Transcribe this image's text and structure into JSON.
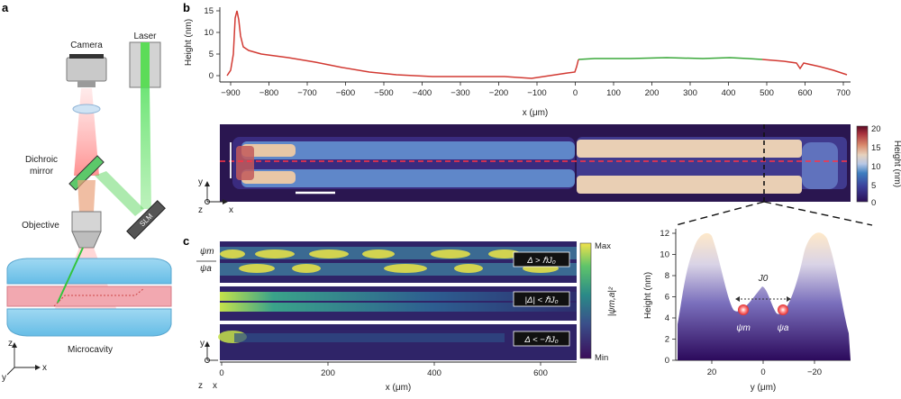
{
  "panel_a": {
    "letter": "a",
    "camera": "Camera",
    "laser": "Laser",
    "dichroic_line1": "Dichroic",
    "dichroic_line2": "mirror",
    "objective": "Objective",
    "slm": "SLM",
    "microcavity": "Microcavity",
    "axis_z": "z",
    "axis_x": "x",
    "axis_y": "y"
  },
  "panel_b": {
    "letter": "b",
    "profile_ylabel": "Height (nm)",
    "profile_xlabel": "x (μm)",
    "profile_xticks": [
      "−900",
      "−800",
      "−700",
      "−600",
      "−500",
      "−400",
      "−300",
      "−200",
      "−100",
      "0",
      "100",
      "200",
      "300",
      "400",
      "500",
      "600",
      "700"
    ],
    "profile_yticks": [
      "0",
      "5",
      "10",
      "15"
    ],
    "map_axis_y": "y",
    "map_axis_z": "z",
    "map_axis_x": "x",
    "colorbar_label": "Height (nm)",
    "colorbar_ticks": [
      "20",
      "15",
      "10",
      "5",
      "0"
    ]
  },
  "panel_c": {
    "letter": "c",
    "psi_m": "ψm",
    "psi_a": "ψa",
    "regime_1": "Δ > ℏJ₀",
    "regime_2": "|Δ| < ℏJ₀",
    "regime_3": "Δ < −ℏJ₀",
    "colorbar_label": "|ψm,a|²",
    "colorbar_max": "Max",
    "colorbar_min": "Min",
    "xlabel": "x (μm)",
    "xticks": [
      "0",
      "200",
      "400",
      "600"
    ],
    "axis_y": "y",
    "axis_z": "z",
    "axis_x": "x"
  },
  "cross_section": {
    "ylabel": "Height (nm)",
    "xlabel": "y (μm)",
    "yticks": [
      "0",
      "2",
      "4",
      "6",
      "8",
      "10",
      "12"
    ],
    "xticks": [
      "20",
      "0",
      "−20"
    ],
    "coupling_label": "J0",
    "psi_m": "ψm",
    "psi_a": "ψa"
  },
  "colors": {
    "profile_red": "#d23a33",
    "profile_green": "#3aa83a",
    "map_bg": "#2a1650",
    "dashed_red": "#ff3344",
    "field_yellow": "#f0e84a",
    "colormap": [
      "#2b0f55",
      "#3b3f9a",
      "#3f7fc0",
      "#b7c7e6",
      "#e7d2bd",
      "#d98a6c",
      "#a8323e",
      "#5a0a23"
    ]
  }
}
